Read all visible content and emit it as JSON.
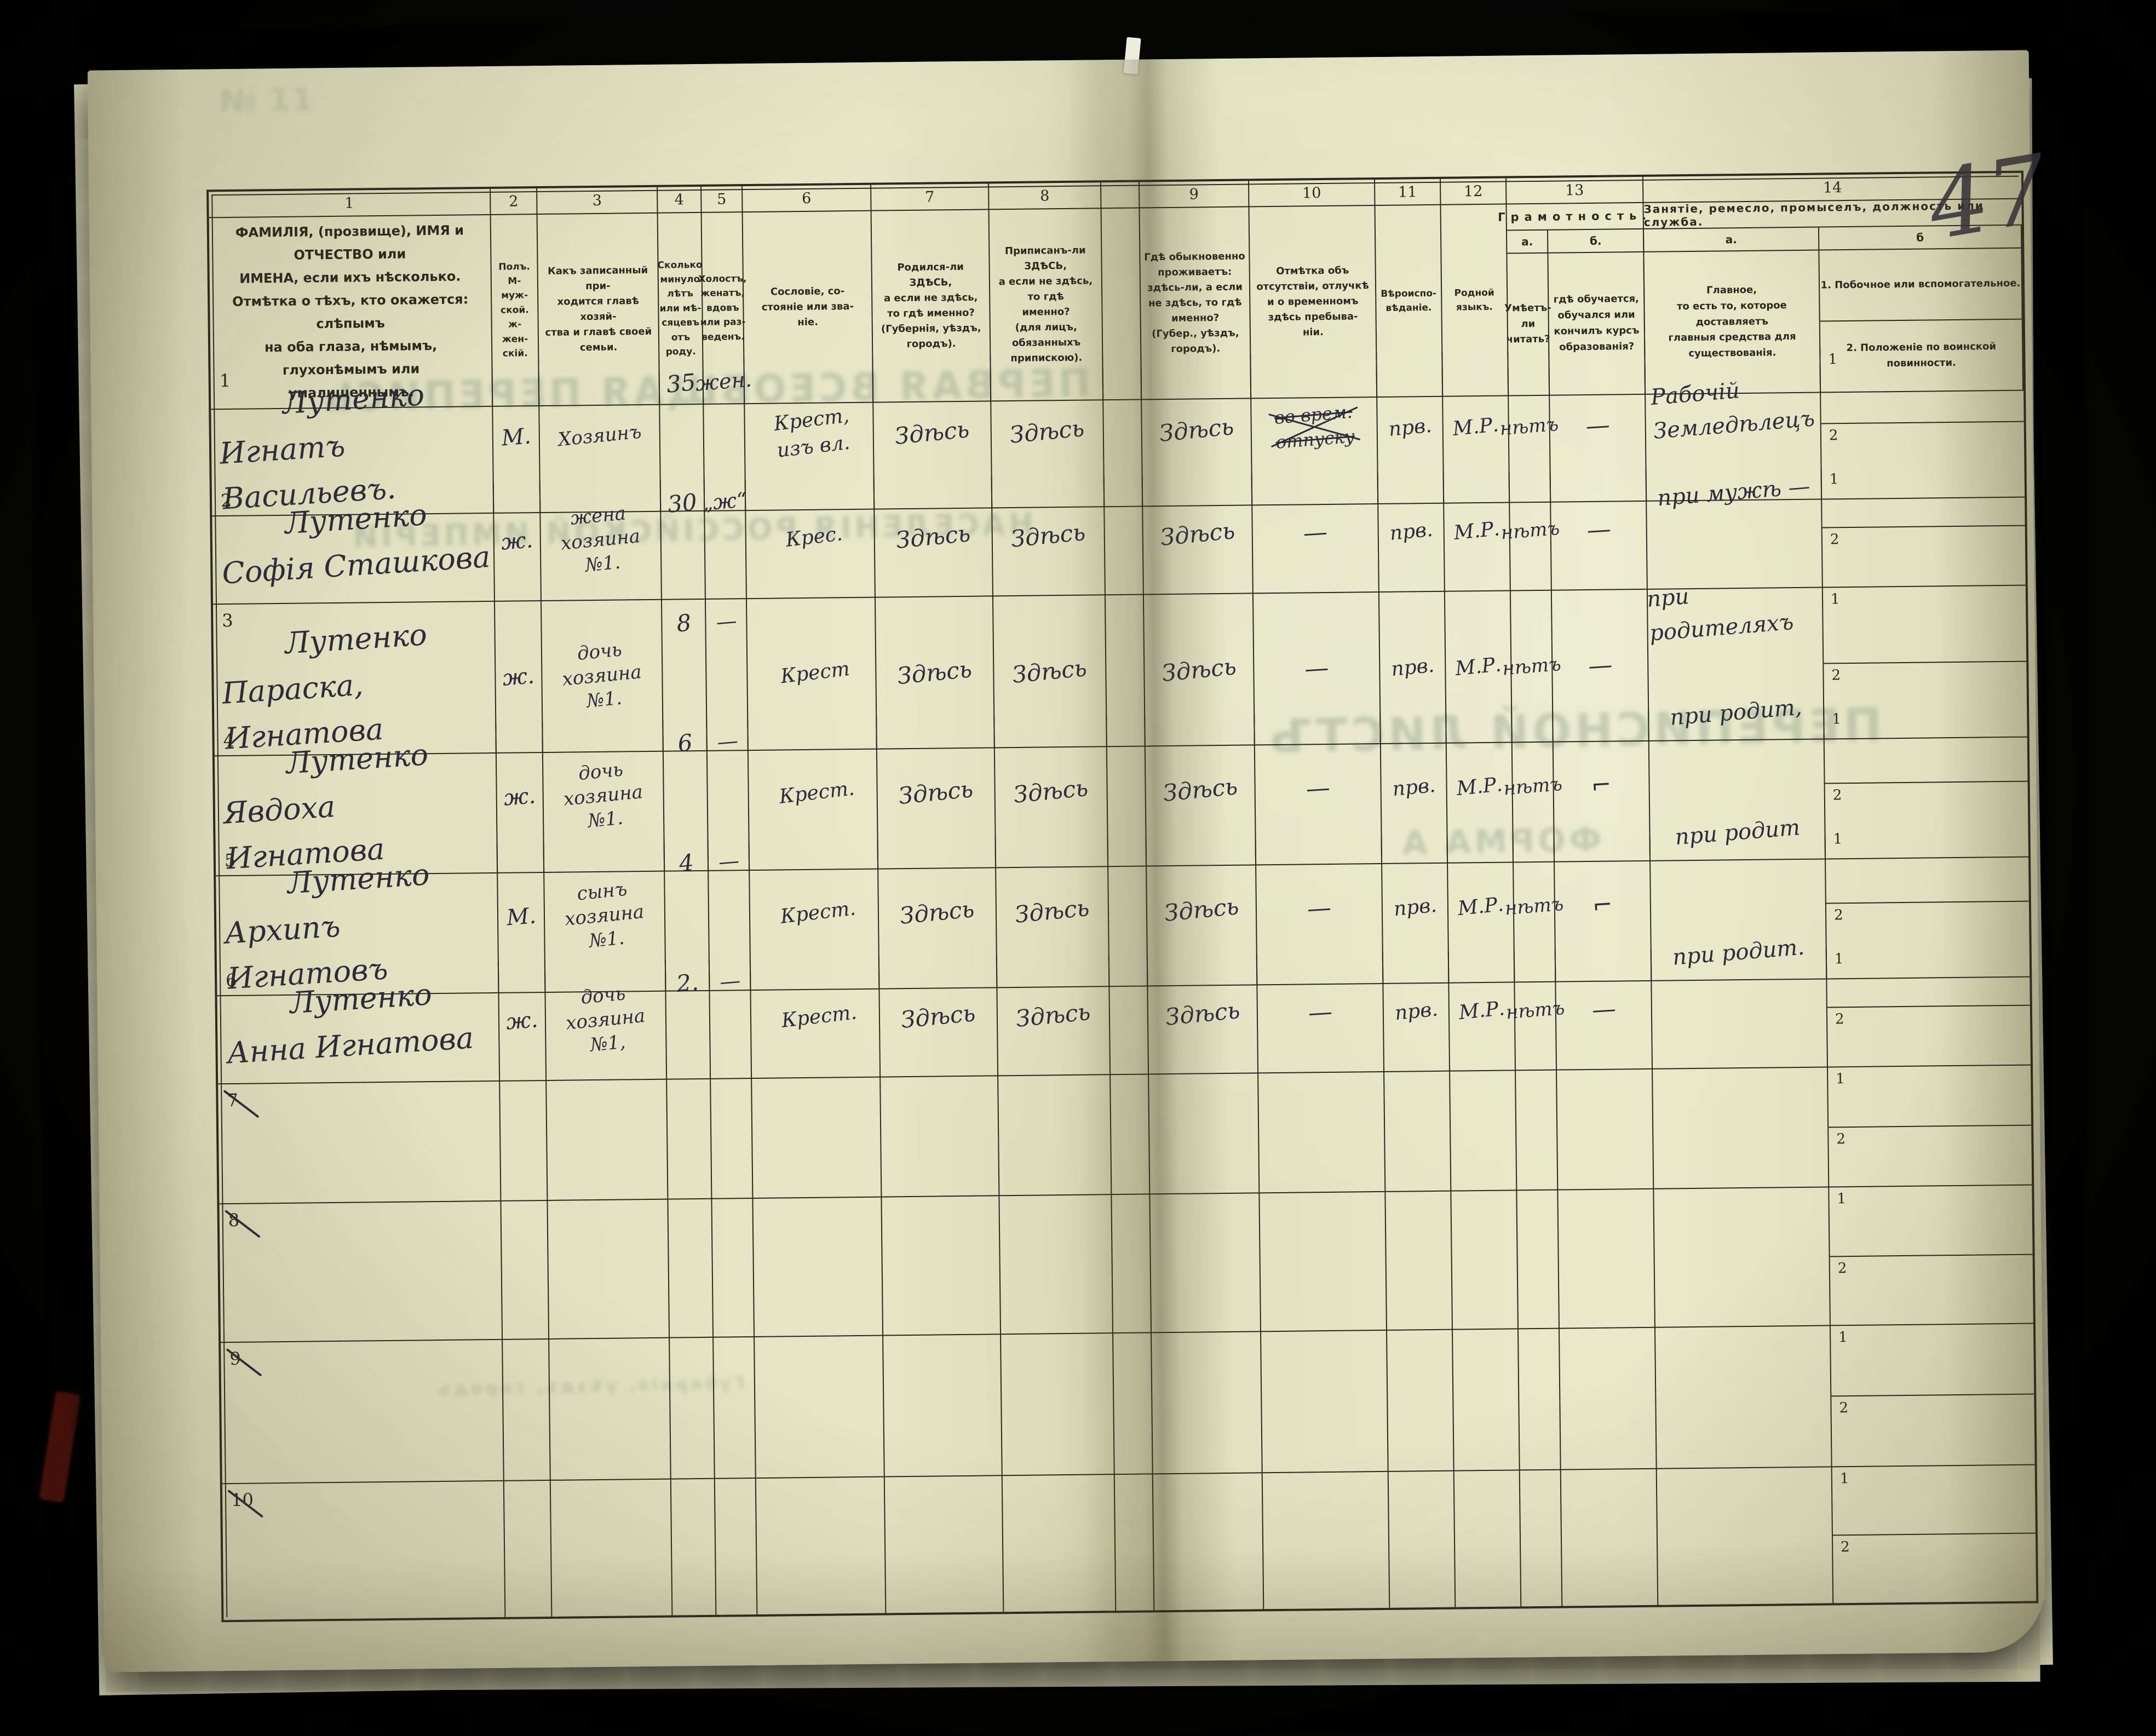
{
  "page": {
    "handwritten_number": "47"
  },
  "table": {
    "column_numbers": [
      "1",
      "2",
      "3",
      "4",
      "5",
      "6",
      "7",
      "8",
      "9",
      "10",
      "11",
      "12",
      "13",
      "14"
    ],
    "headers": {
      "col1": "ФАМИЛІЯ, (прозвище), ИМЯ и ОТЧЕСТВО или\nИМЕНА, если ихъ нѣсколько.\nОтмѣтка о тѣхъ, кто окажется: слѣпымъ\nна оба глаза, нѣмымъ, глухонѣмымъ или\nумалишеннымъ.",
      "col2": "Полъ.\nМ-муж-\nской.\nж-жен-\nскій.",
      "col3": "Какъ записанный при-\nходится главѣ хозяй-\nства и главѣ своей\nсемьи.",
      "col4": "Сколько\nминуло\nлѣтъ\nили мѣ-\nсяцевъ\nотъ роду.",
      "col5": "Холостъ,\nженатъ,\nвдовъ\nили раз-\nведенъ.",
      "col6": "Сословіе, со-\nстояніе или зва-\nніе.",
      "col7": "Родился-ли ЗДѢСЬ,\nа если не здѣсь,\nто гдѣ именно?\n(Губернія, уѣздъ, городъ).",
      "col8": "Приписанъ-ли ЗДѢСЬ,\nа если не здѣсь, то гдѣ\nименно?\n(для лицъ, обязанныхъ\nприпискою).",
      "col9": "Гдѣ обыкновенно\nпроживаетъ:\nздѣсь-ли, а если\nне здѣсь, то гдѣ\nименно?\n(Губер., уѣздъ, городъ).",
      "col10": "Отмѣтка объ\nотсутствіи, отлучкѣ\nи о временномъ\nздѣсь пребыва-\nніи.",
      "col11": "Вѣроиспо-\nвѣданіе.",
      "col12": "Родной\nязыкъ."
    },
    "col13": {
      "title": "Грамотность.",
      "sub_a": "а.",
      "sub_b": "б.",
      "body_a": "Умѣетъ-\nли\nчитать?",
      "body_b": "гдѣ обучается,\nобучался или\nкончилъ курсъ\nобразованія?"
    },
    "col14": {
      "title": "Занятіе, ремесло, промыселъ, должность или служба.",
      "sub_a": "а.",
      "sub_b": "б",
      "body_a": "Главное,\nто есть то, которое доставляетъ\nглавныя средства для существованія.",
      "body_b1": "1.  Побочное или вспомогательное.",
      "body_b2": "2.  Положеніе по воинской повинности.",
      "row_label_1": "1",
      "row_label_2": "2"
    }
  },
  "rows": [
    {
      "num": "1",
      "struck_number": false,
      "name": [
        "Лутенко",
        "Игнатъ Васильевъ."
      ],
      "sex": "М.",
      "relation": [
        "Хозяинъ"
      ],
      "age": "35",
      "marital": "жен.",
      "estate": [
        "Крест,",
        "изъ вл."
      ],
      "born": "Здѣсь",
      "registered": "Здѣсь",
      "resides": "Здѣсь",
      "absence_struck": [
        "во врем.",
        "отпуску"
      ],
      "absence_mark": "",
      "religion": "прв.",
      "language": "М.Р.",
      "literate": "нѣтъ",
      "education_mark": "—",
      "occupation": [
        "Рабочій",
        "Земледѣлецъ"
      ],
      "side1": "",
      "side2": ""
    },
    {
      "num": "2",
      "struck_number": false,
      "name": [
        "Лутенко",
        "Софія Сташкова"
      ],
      "sex": "ж.",
      "relation": [
        "жена",
        "хозяина",
        "№1."
      ],
      "age": "30",
      "marital": "„ж“",
      "estate": [
        "Крес."
      ],
      "born": "Здѣсь",
      "registered": "Здѣсь",
      "resides": "Здѣсь",
      "absence_struck": [],
      "absence_mark": "—",
      "religion": "прв.",
      "language": "М.Р.",
      "literate": "нѣтъ",
      "education_mark": "—",
      "occupation": [
        "при мужѣ —"
      ],
      "side1": "",
      "side2": ""
    },
    {
      "num": "3",
      "struck_number": false,
      "name": [
        "Лутенко",
        "Параска, Игнатова"
      ],
      "sex": "ж.",
      "relation": [
        "дочь",
        "хозяина",
        "№1."
      ],
      "age": "8",
      "marital": "—",
      "estate": [
        "Крест"
      ],
      "born": "Здѣсь",
      "registered": "Здѣсь",
      "resides": "Здѣсь",
      "absence_struck": [],
      "absence_mark": "—",
      "religion": "прв.",
      "language": "М.Р.",
      "literate": "нѣтъ",
      "education_mark": "—",
      "occupation": [
        "при родителяхъ"
      ],
      "side1": "",
      "side2": ""
    },
    {
      "num": "4",
      "struck_number": false,
      "name": [
        "Лутенко",
        "Явдоха Игнатова"
      ],
      "sex": "ж.",
      "relation": [
        "дочь",
        "хозяина",
        "№1."
      ],
      "age": "6",
      "marital": "—",
      "estate": [
        "Крест."
      ],
      "born": "Здѣсь",
      "registered": "Здѣсь",
      "resides": "Здѣсь",
      "absence_struck": [],
      "absence_mark": "—",
      "religion": "прв.",
      "language": "М.Р.",
      "literate": "нѣтъ",
      "education_mark": "⌐",
      "occupation": [
        "при родит,"
      ],
      "side1": "",
      "side2": ""
    },
    {
      "num": "5",
      "struck_number": false,
      "name": [
        "Лутенко",
        "Архипъ Игнатовъ"
      ],
      "sex": "М.",
      "relation": [
        "сынъ",
        "хозяина",
        "№1."
      ],
      "age": "4",
      "marital": "—",
      "estate": [
        "Крест."
      ],
      "born": "Здѣсь",
      "registered": "Здѣсь",
      "resides": "Здѣсь",
      "absence_struck": [],
      "absence_mark": "—",
      "religion": "прв.",
      "language": "М.Р.",
      "literate": "нѣтъ",
      "education_mark": "⌐",
      "occupation": [
        "при родит"
      ],
      "side1": "",
      "side2": ""
    },
    {
      "num": "6",
      "struck_number": false,
      "name": [
        "Лутенко",
        "Анна Игнатова"
      ],
      "sex": "ж.",
      "relation": [
        "дочь",
        "хозяина",
        "№1,"
      ],
      "age": "2.",
      "marital": "—",
      "estate": [
        "Крест."
      ],
      "born": "Здѣсь",
      "registered": "Здѣсь",
      "resides": "Здѣсь",
      "absence_struck": [],
      "absence_mark": "—",
      "religion": "прв.",
      "language": "М.Р.",
      "literate": "нѣтъ",
      "education_mark": "—",
      "occupation": [
        "при родит."
      ],
      "side1": "",
      "side2": ""
    },
    {
      "num": "7",
      "struck_number": true,
      "name": [],
      "sex": "",
      "relation": [],
      "age": "",
      "marital": "",
      "estate": [],
      "born": "",
      "registered": "",
      "resides": "",
      "absence_struck": [],
      "absence_mark": "",
      "religion": "",
      "language": "",
      "literate": "",
      "education_mark": "",
      "occupation": [],
      "side1": "",
      "side2": ""
    },
    {
      "num": "8",
      "struck_number": true,
      "name": [],
      "sex": "",
      "relation": [],
      "age": "",
      "marital": "",
      "estate": [],
      "born": "",
      "registered": "",
      "resides": "",
      "absence_struck": [],
      "absence_mark": "",
      "religion": "",
      "language": "",
      "literate": "",
      "education_mark": "",
      "occupation": [],
      "side1": "",
      "side2": ""
    },
    {
      "num": "9",
      "struck_number": true,
      "name": [],
      "sex": "",
      "relation": [],
      "age": "",
      "marital": "",
      "estate": [],
      "born": "",
      "registered": "",
      "resides": "",
      "absence_struck": [],
      "absence_mark": "",
      "religion": "",
      "language": "",
      "literate": "",
      "education_mark": "",
      "occupation": [],
      "side1": "",
      "side2": ""
    },
    {
      "num": "10",
      "struck_number": true,
      "name": [],
      "sex": "",
      "relation": [],
      "age": "",
      "marital": "",
      "estate": [],
      "born": "",
      "registered": "",
      "resides": "",
      "absence_struck": [],
      "absence_mark": "",
      "religion": "",
      "language": "",
      "literate": "",
      "education_mark": "",
      "occupation": [],
      "side1": "",
      "side2": ""
    }
  ],
  "bleedthrough": [
    {
      "text": "№ 11",
      "mirrored": false
    },
    {
      "text": "ПЕРВАЯ ВСЕОБЩАЯ ПЕРЕПИСЬ",
      "mirrored": true
    },
    {
      "text": "НАСЕЛЕНІЯ РОССІЙСКОЙ ИМПЕРІИ",
      "mirrored": true
    },
    {
      "text": "ПЕРЕПИСНОЙ ЛИСТЪ",
      "mirrored": true
    },
    {
      "text": "ФОРМА А",
      "mirrored": true
    },
    {
      "text": "Губернія, уѣздъ, городъ",
      "mirrored": true
    }
  ],
  "colors": {
    "paper": "#e2e1c0",
    "ink": "#29281e",
    "handwriting": "#2c2b3a",
    "background": "#000000",
    "bleedthrough": "#8fa18b"
  }
}
